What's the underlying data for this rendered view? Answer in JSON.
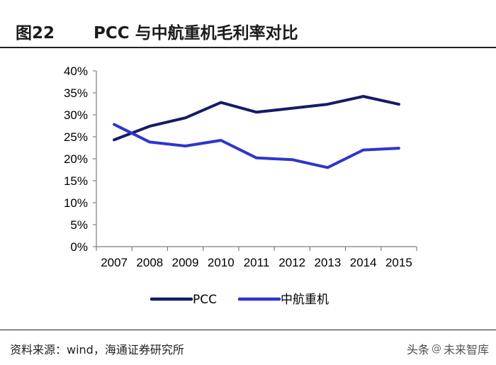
{
  "header": {
    "figure_number": "图22",
    "title": "PCC 与中航重机毛利率对比"
  },
  "footer": {
    "source": "资料来源：wind，海通证券研究所"
  },
  "watermark": {
    "platform": "头条",
    "icon": "at-icon",
    "brand": "未来智库"
  },
  "chart_data": {
    "type": "line",
    "title": "",
    "xlabel": "",
    "ylabel": "",
    "categories": [
      "2007",
      "2008",
      "2009",
      "2010",
      "2011",
      "2012",
      "2013",
      "2014",
      "2015"
    ],
    "y_tick_labels": [
      "0%",
      "5%",
      "10%",
      "15%",
      "20%",
      "25%",
      "30%",
      "35%",
      "40%"
    ],
    "ylim": [
      0,
      40
    ],
    "y_unit": "%",
    "grid": false,
    "legend_position": "bottom-center",
    "series": [
      {
        "name": "PCC",
        "color": "#141b6e",
        "values": [
          24.3,
          27.4,
          29.3,
          32.8,
          30.6,
          31.5,
          32.4,
          34.2,
          32.4
        ]
      },
      {
        "name": "中航重机",
        "color": "#2a33e0",
        "values": [
          27.8,
          23.8,
          22.9,
          24.2,
          20.2,
          19.8,
          18.0,
          22.0,
          22.4
        ]
      }
    ]
  }
}
